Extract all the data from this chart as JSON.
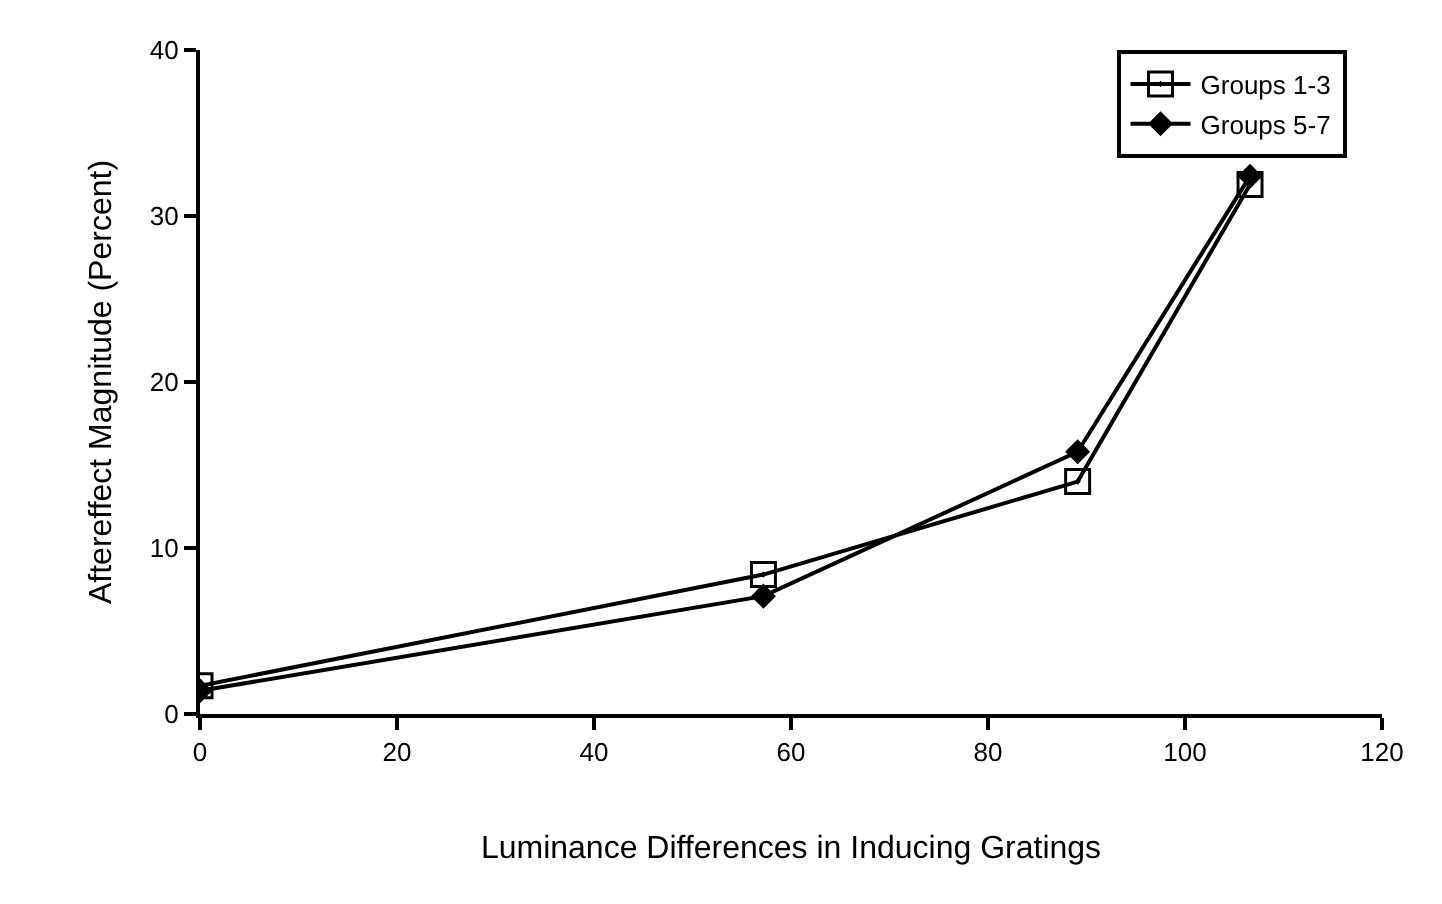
{
  "chart_data": {
    "type": "line",
    "xlabel": "Luminance Differences in Inducing Gratings",
    "ylabel": "Aftereffect Magnitude (Percent)",
    "xlim": [
      0,
      120
    ],
    "xticks": [
      0,
      20,
      40,
      60,
      80,
      100,
      120
    ],
    "ylim": [
      0,
      40
    ],
    "yticks": [
      0,
      10,
      20,
      30,
      40
    ],
    "grid": false,
    "legend": "top right",
    "line_style": "solid",
    "series": [
      {
        "name": "Groups 1-3",
        "color": "#000000",
        "marker": "square",
        "x": [
          0,
          57.2,
          89.1,
          106.6
        ],
        "values": [
          1.7,
          8.4,
          14.0,
          31.9
        ]
      },
      {
        "name": "Groups 5-7",
        "color": "#000000",
        "marker": "diamond",
        "x": [
          0,
          57.2,
          89.1,
          106.6
        ],
        "values": [
          1.4,
          7.1,
          15.8,
          32.4
        ]
      }
    ]
  }
}
